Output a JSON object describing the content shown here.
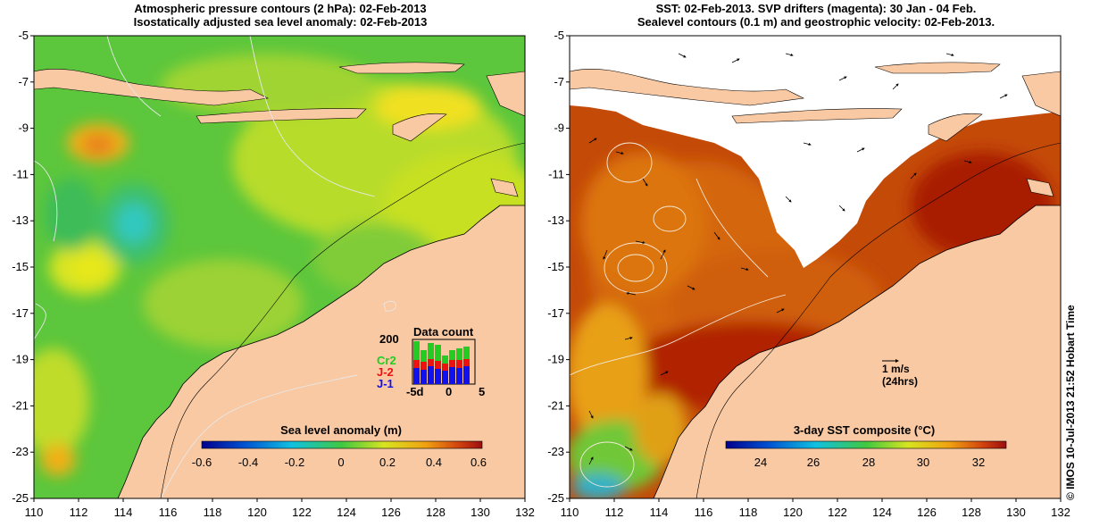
{
  "left_panel": {
    "title_line1": "Atmospheric pressure contours (2 hPa): 02-Feb-2013",
    "title_line2": "Isostatically adjusted sea level anomaly: 02-Feb-2013",
    "colorbar_label": "Sea level anomaly (m)",
    "colorbar_ticks": [
      "-0.6",
      "-0.4",
      "-0.2",
      "0",
      "0.2",
      "0.4",
      "0.6"
    ],
    "inset": {
      "title": "Data count",
      "y_label": "200",
      "x_ticks": [
        "-5d",
        "0",
        "5"
      ],
      "legend": [
        {
          "label": "Cr2",
          "color": "#22cc22"
        },
        {
          "label": "J-2",
          "color": "#ee1111"
        },
        {
          "label": "J-1",
          "color": "#1111ee"
        }
      ]
    }
  },
  "right_panel": {
    "title_line1": "SST: 02-Feb-2013. SVP drifters (magenta): 30 Jan - 04 Feb.",
    "title_line2": "Sealevel contours (0.1 m) and geostrophic velocity: 02-Feb-2013.",
    "colorbar_label": "3-day SST composite (°C)",
    "colorbar_ticks": [
      "24",
      "26",
      "28",
      "30",
      "32"
    ],
    "scale_arrow_label1": "1 m/s",
    "scale_arrow_label2": "(24hrs)"
  },
  "axes": {
    "lat_ticks": [
      "-5",
      "-7",
      "-9",
      "-11",
      "-13",
      "-15",
      "-17",
      "-19",
      "-21",
      "-23",
      "-25"
    ],
    "lon_ticks": [
      "110",
      "112",
      "114",
      "116",
      "118",
      "120",
      "122",
      "124",
      "126",
      "128",
      "130",
      "132"
    ]
  },
  "credit": "© IMOS 10-Jul-2013 21:52 Hobart Time",
  "colors": {
    "land": "#f9c9a3",
    "cloud": "#ffffff",
    "sla_green": "#5cc63c",
    "sla_yellow": "#d6e422",
    "sst_orange": "#d4660c",
    "sst_red": "#b02200"
  }
}
